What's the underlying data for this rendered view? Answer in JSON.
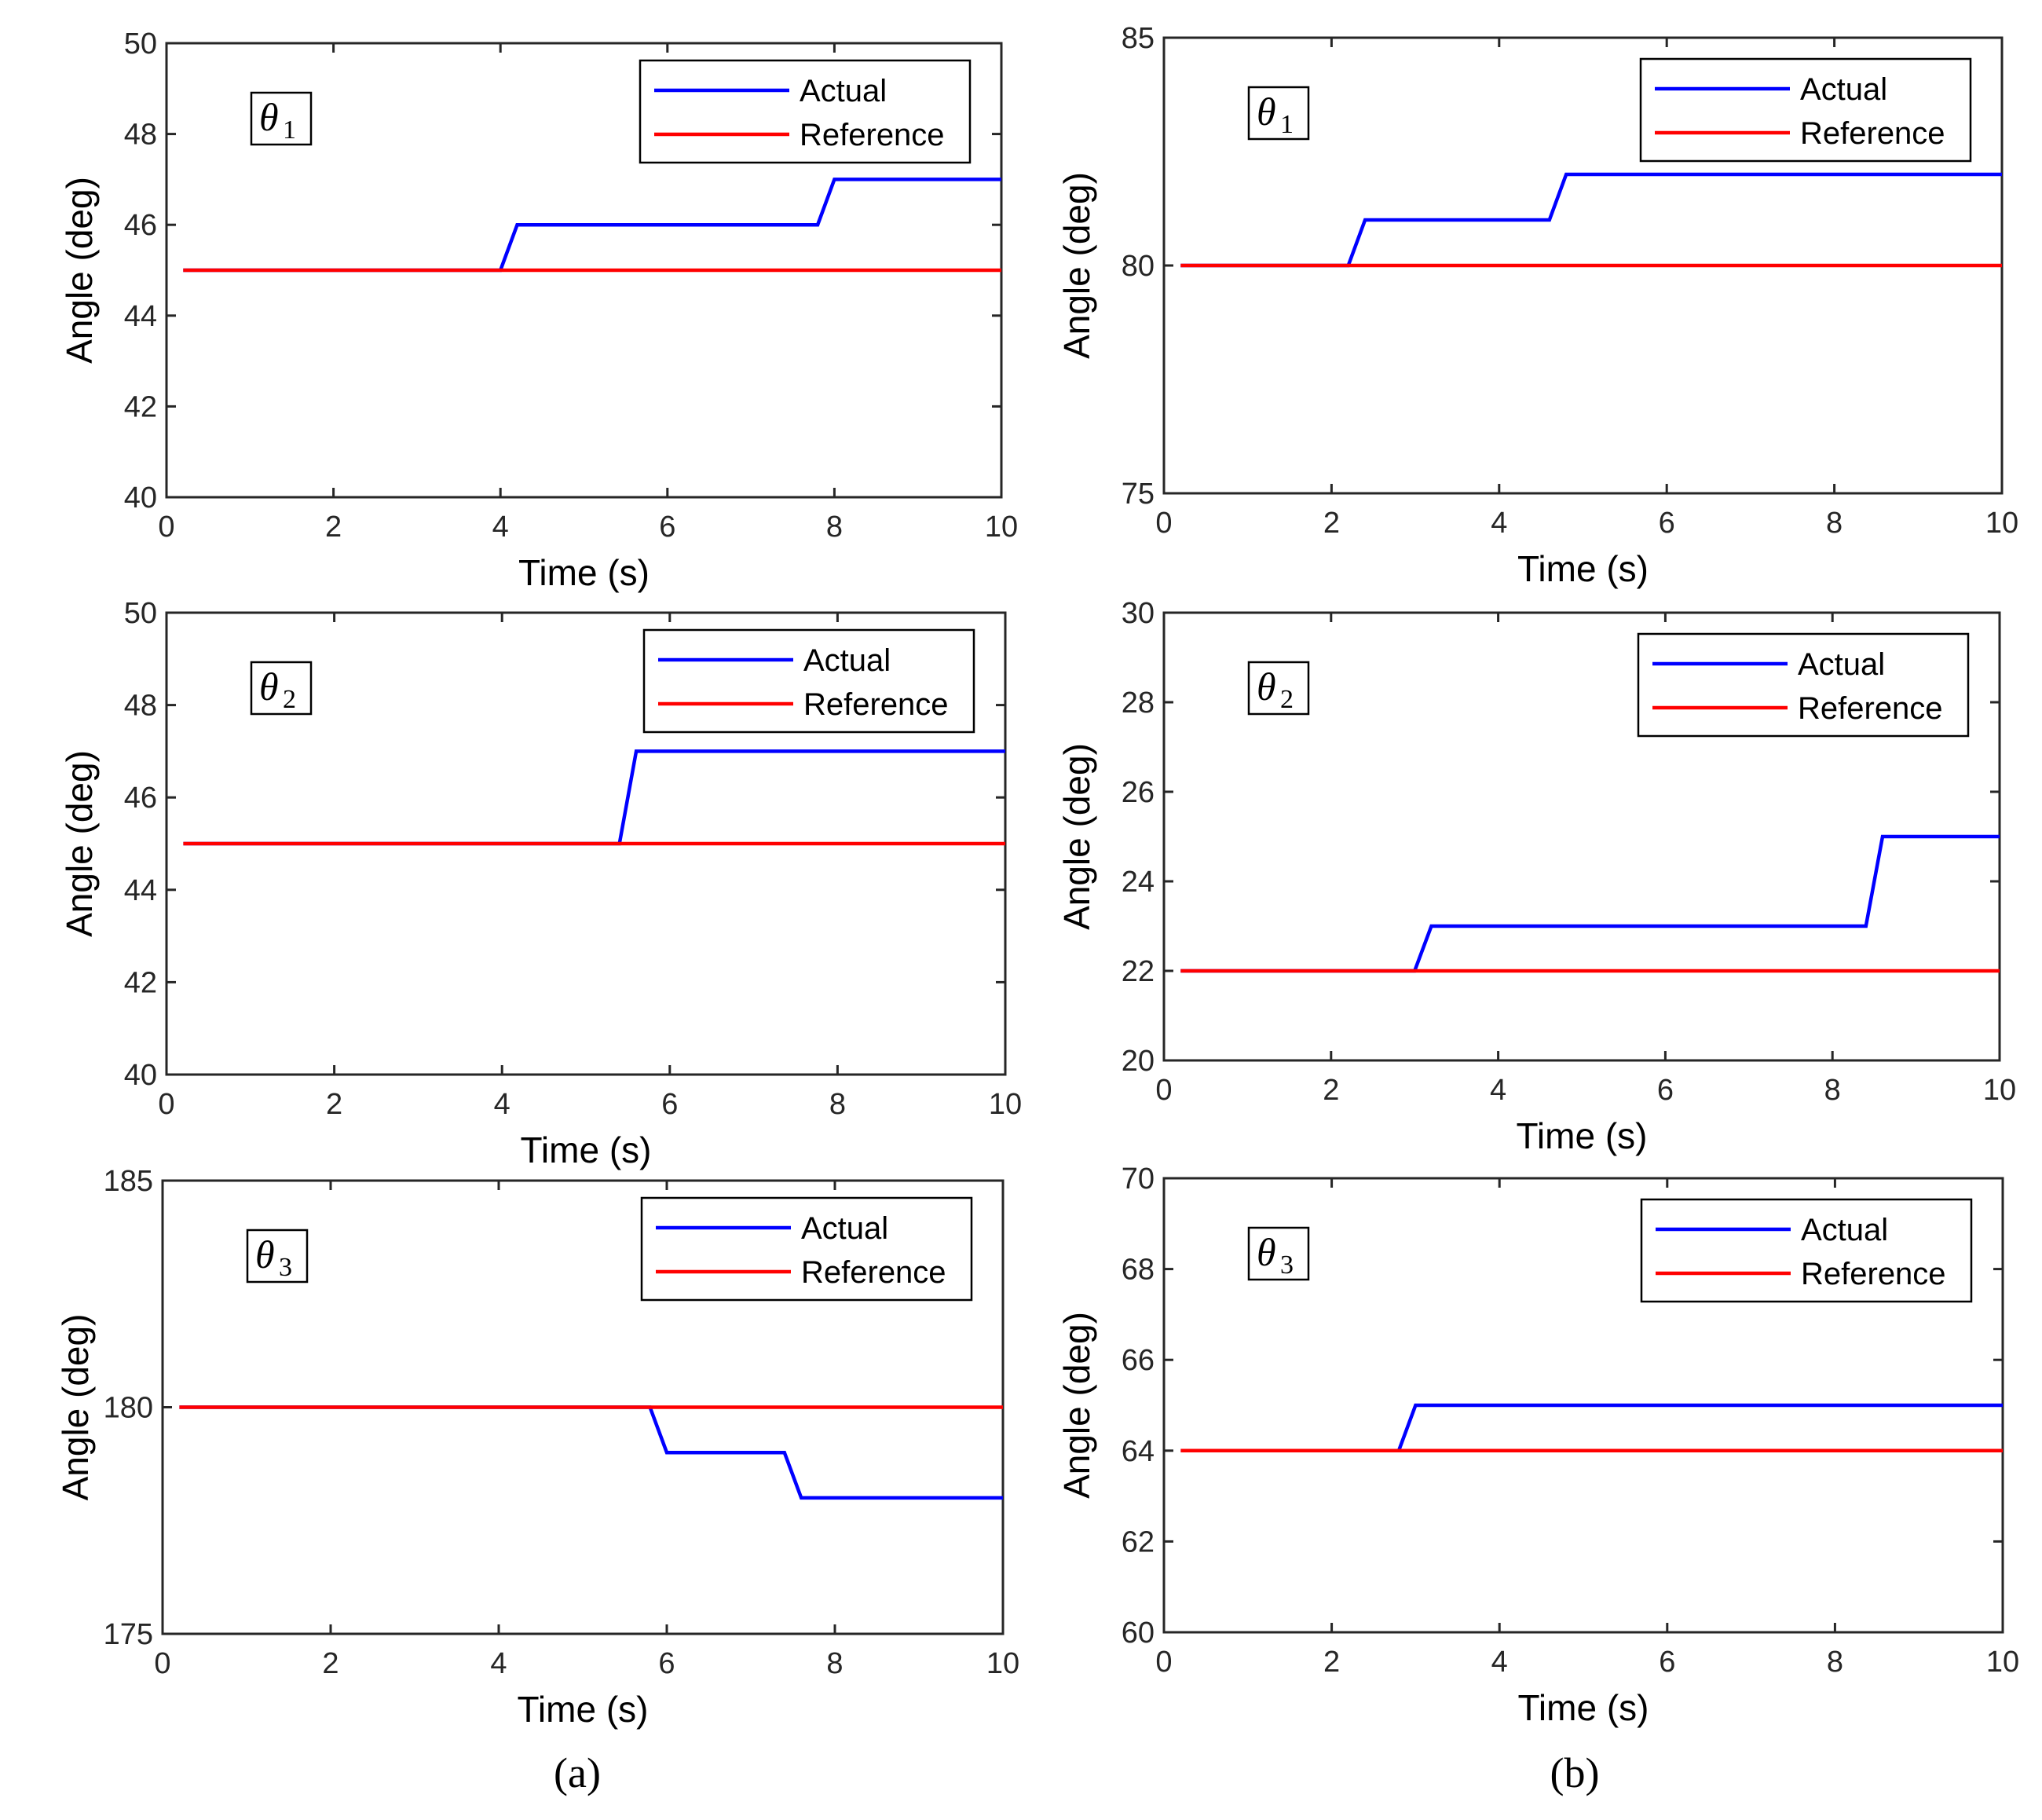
{
  "colors": {
    "actual": "#0000ff",
    "reference": "#ff0000",
    "axis": "#262626"
  },
  "chart_data": [
    {
      "type": "line",
      "column": "a",
      "xlabel": "Time (s)",
      "ylabel": "Angle (deg)",
      "xlim": [
        0,
        10
      ],
      "ylim": [
        40,
        50
      ],
      "xticks": [
        "0",
        "2",
        "4",
        "6",
        "8",
        "10"
      ],
      "yticks": [
        "40",
        "42",
        "44",
        "46",
        "48",
        "50"
      ],
      "annotation": {
        "symbol": "θ",
        "subscript": "1"
      },
      "legend": {
        "position": "top-right",
        "entries": [
          "Actual",
          "Reference"
        ]
      },
      "series": [
        {
          "name": "Actual",
          "color_key": "actual",
          "x": [
            0.2,
            4.0,
            4.2,
            7.8,
            8.0,
            10
          ],
          "y": [
            45,
            45,
            46,
            46,
            47,
            47
          ]
        },
        {
          "name": "Reference",
          "color_key": "reference",
          "x": [
            0.2,
            10
          ],
          "y": [
            45,
            45
          ]
        }
      ]
    },
    {
      "type": "line",
      "column": "b",
      "xlabel": "Time (s)",
      "ylabel": "Angle (deg)",
      "xlim": [
        0,
        10
      ],
      "ylim": [
        75,
        85
      ],
      "xticks": [
        "0",
        "2",
        "4",
        "6",
        "8",
        "10"
      ],
      "yticks": [
        "75",
        "80",
        "85"
      ],
      "annotation": {
        "symbol": "θ",
        "subscript": "1"
      },
      "legend": {
        "position": "top-right",
        "entries": [
          "Actual",
          "Reference"
        ]
      },
      "series": [
        {
          "name": "Actual",
          "color_key": "actual",
          "x": [
            0.2,
            2.2,
            2.4,
            4.6,
            4.8,
            10
          ],
          "y": [
            80,
            80,
            81,
            81,
            82,
            82
          ]
        },
        {
          "name": "Reference",
          "color_key": "reference",
          "x": [
            0.2,
            10
          ],
          "y": [
            80,
            80
          ]
        }
      ]
    },
    {
      "type": "line",
      "column": "a",
      "xlabel": "Time (s)",
      "ylabel": "Angle (deg)",
      "xlim": [
        0,
        10
      ],
      "ylim": [
        40,
        50
      ],
      "xticks": [
        "0",
        "2",
        "4",
        "6",
        "8",
        "10"
      ],
      "yticks": [
        "40",
        "42",
        "44",
        "46",
        "48",
        "50"
      ],
      "annotation": {
        "symbol": "θ",
        "subscript": "2"
      },
      "legend": {
        "position": "top-right",
        "entries": [
          "Actual",
          "Reference"
        ]
      },
      "series": [
        {
          "name": "Actual",
          "color_key": "actual",
          "x": [
            0.2,
            5.4,
            5.6,
            10
          ],
          "y": [
            45,
            45,
            47,
            47
          ]
        },
        {
          "name": "Reference",
          "color_key": "reference",
          "x": [
            0.2,
            10
          ],
          "y": [
            45,
            45
          ]
        }
      ]
    },
    {
      "type": "line",
      "column": "b",
      "xlabel": "Time (s)",
      "ylabel": "Angle (deg)",
      "xlim": [
        0,
        10
      ],
      "ylim": [
        20,
        30
      ],
      "xticks": [
        "0",
        "2",
        "4",
        "6",
        "8",
        "10"
      ],
      "yticks": [
        "20",
        "22",
        "24",
        "26",
        "28",
        "30"
      ],
      "annotation": {
        "symbol": "θ",
        "subscript": "2"
      },
      "legend": {
        "position": "top-right",
        "entries": [
          "Actual",
          "Reference"
        ]
      },
      "series": [
        {
          "name": "Actual",
          "color_key": "actual",
          "x": [
            0.2,
            3.0,
            3.2,
            8.4,
            8.6,
            10
          ],
          "y": [
            22,
            22,
            23,
            23,
            25,
            25
          ]
        },
        {
          "name": "Reference",
          "color_key": "reference",
          "x": [
            0.2,
            10
          ],
          "y": [
            22,
            22
          ]
        }
      ]
    },
    {
      "type": "line",
      "column": "a",
      "xlabel": "Time (s)",
      "ylabel": "Angle (deg)",
      "xlim": [
        0,
        10
      ],
      "ylim": [
        175,
        185
      ],
      "xticks": [
        "0",
        "2",
        "4",
        "6",
        "8",
        "10"
      ],
      "yticks": [
        "175",
        "180",
        "185"
      ],
      "annotation": {
        "symbol": "θ",
        "subscript": "3"
      },
      "legend": {
        "position": "top-right",
        "entries": [
          "Actual",
          "Reference"
        ]
      },
      "series": [
        {
          "name": "Actual",
          "color_key": "actual",
          "x": [
            0.2,
            5.8,
            6.0,
            7.4,
            7.6,
            10
          ],
          "y": [
            180,
            180,
            179,
            179,
            178,
            178
          ]
        },
        {
          "name": "Reference",
          "color_key": "reference",
          "x": [
            0.2,
            10
          ],
          "y": [
            180,
            180
          ]
        }
      ]
    },
    {
      "type": "line",
      "column": "b",
      "xlabel": "Time (s)",
      "ylabel": "Angle (deg)",
      "xlim": [
        0,
        10
      ],
      "ylim": [
        60,
        70
      ],
      "xticks": [
        "0",
        "2",
        "4",
        "6",
        "8",
        "10"
      ],
      "yticks": [
        "60",
        "62",
        "64",
        "66",
        "68",
        "70"
      ],
      "annotation": {
        "symbol": "θ",
        "subscript": "3"
      },
      "legend": {
        "position": "top-right",
        "entries": [
          "Actual",
          "Reference"
        ]
      },
      "series": [
        {
          "name": "Actual",
          "color_key": "actual",
          "x": [
            0.2,
            2.8,
            3.0,
            10
          ],
          "y": [
            64,
            64,
            65,
            65
          ]
        },
        {
          "name": "Reference",
          "color_key": "reference",
          "x": [
            0.2,
            10
          ],
          "y": [
            64,
            64
          ]
        }
      ]
    }
  ],
  "captions": {
    "a": "(a)",
    "b": "(b)"
  }
}
